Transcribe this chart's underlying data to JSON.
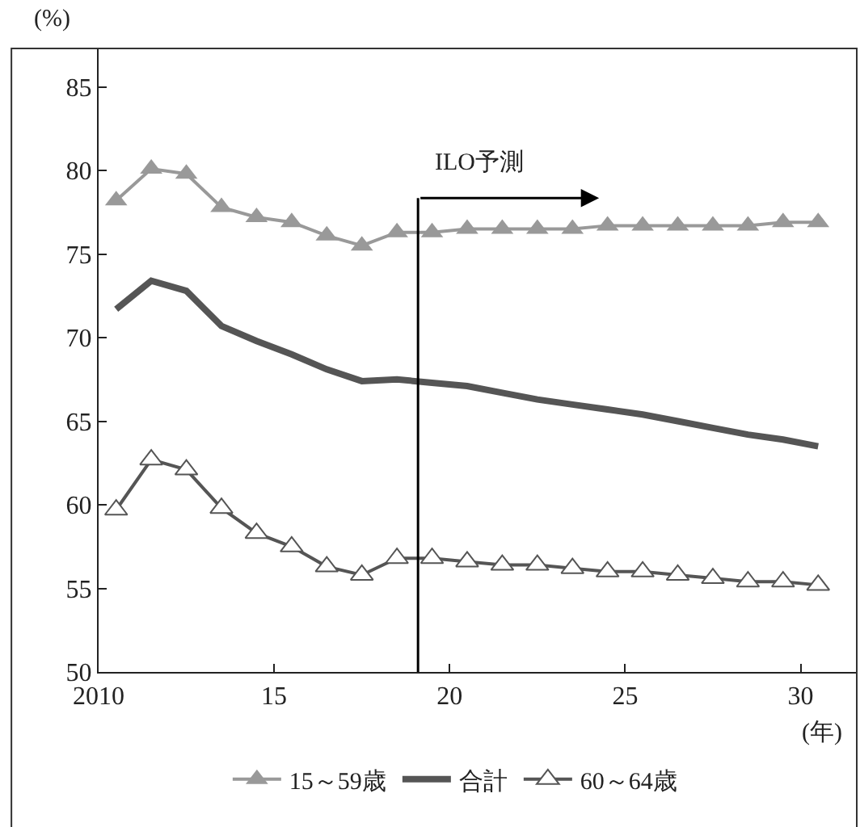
{
  "chart_data": {
    "type": "line",
    "ylabel": "(%)",
    "xlabel": "(年)",
    "x": [
      2010.5,
      2011.5,
      2012.5,
      2013.5,
      2014.5,
      2015.5,
      2016.5,
      2017.5,
      2018.5,
      2019.5,
      2020.5,
      2021.5,
      2022.5,
      2023.5,
      2024.5,
      2025.5,
      2026.5,
      2027.5,
      2028.5,
      2029.5,
      2030.5
    ],
    "series": [
      {
        "name": "15～59歳",
        "color": "#999999",
        "marker": "triangle",
        "values": [
          78.2,
          80.1,
          79.8,
          77.8,
          77.2,
          76.9,
          76.1,
          75.5,
          76.3,
          76.3,
          76.5,
          76.5,
          76.5,
          76.5,
          76.7,
          76.7,
          76.7,
          76.7,
          76.7,
          76.9,
          76.9
        ]
      },
      {
        "name": "合計",
        "color": "#555555",
        "marker": "none",
        "values": [
          71.7,
          73.4,
          72.8,
          70.7,
          69.8,
          69.0,
          68.1,
          67.4,
          67.5,
          67.3,
          67.1,
          66.7,
          66.3,
          66.0,
          65.7,
          65.4,
          65.0,
          64.6,
          64.2,
          63.9,
          63.5
        ]
      },
      {
        "name": "60～64歳",
        "color": "#555555",
        "marker": "triangle",
        "values": [
          59.7,
          62.7,
          62.1,
          59.8,
          58.3,
          57.5,
          56.3,
          55.8,
          56.8,
          56.8,
          56.6,
          56.4,
          56.4,
          56.2,
          56.0,
          56.0,
          55.8,
          55.6,
          55.4,
          55.4,
          55.2
        ]
      }
    ],
    "xlim": [
      2010,
      2031.6
    ],
    "xticks": [
      {
        "value": 2010,
        "label": "2010"
      },
      {
        "value": 2015,
        "label": "15"
      },
      {
        "value": 2020,
        "label": "20"
      },
      {
        "value": 2025,
        "label": "25"
      },
      {
        "value": 2030,
        "label": "30"
      }
    ],
    "ylim": [
      50,
      87.3
    ],
    "yticks": [
      50,
      55,
      60,
      65,
      70,
      75,
      80,
      85
    ],
    "ref_lines": [
      {
        "axis": "x",
        "value": 2019.1,
        "label": "ILO予測"
      }
    ],
    "legend": "bottom"
  }
}
